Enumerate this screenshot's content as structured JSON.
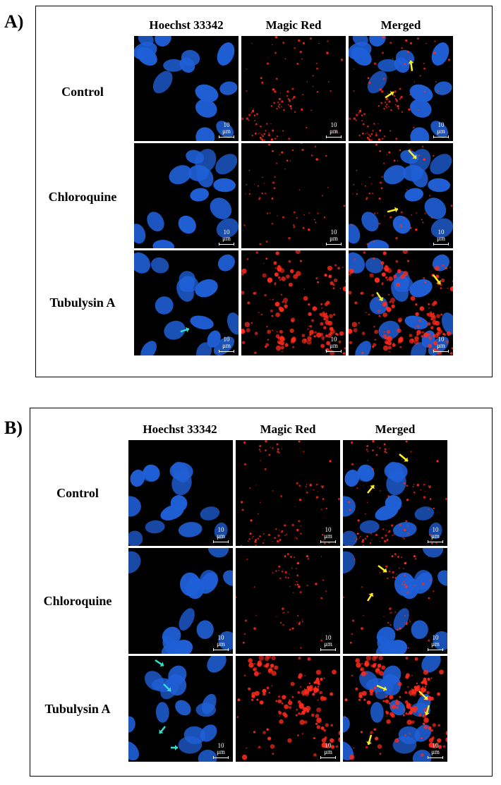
{
  "panels": [
    {
      "letter": "A)",
      "columns": [
        "Hoechst 33342",
        "Magic Red",
        "Merged"
      ],
      "rows": [
        "Control",
        "Chloroquine",
        "Tubulysin A"
      ]
    },
    {
      "letter": "B)",
      "columns": [
        "Hoechst 33342",
        "Magic Red",
        "Merged"
      ],
      "rows": [
        "Control",
        "Chloroquine",
        "Tubulysin A"
      ]
    }
  ],
  "scale_bar": "10 μm",
  "colors": {
    "nucleus": "#1f5fd6",
    "nucleus_light": "#3a80ff",
    "lysosome": "#ff2a1a",
    "arrow_yellow": "#ffee22",
    "arrow_cyan": "#33e0d0"
  }
}
